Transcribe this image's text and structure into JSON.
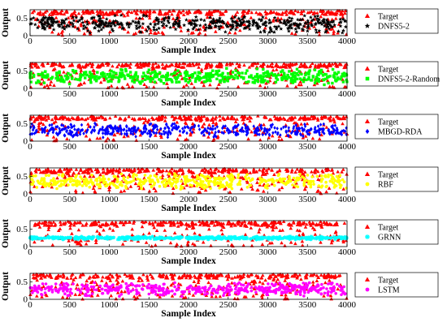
{
  "chart_data": [
    {
      "type": "scatter",
      "xlabel": "Sample Index",
      "ylabel": "Output",
      "xlim": [
        0,
        4000
      ],
      "ylim": [
        0,
        0.75
      ],
      "xticks": [
        "0",
        "500",
        "1000",
        "1500",
        "2000",
        "2500",
        "3000",
        "3500",
        "4000"
      ],
      "yticks": [
        "0",
        "0.5"
      ],
      "grid": false,
      "legend_position": "outside-right",
      "series": [
        {
          "name": "Target",
          "marker": "triangle",
          "color": "#ff0000",
          "typical_range": [
            0.0,
            0.72
          ]
        },
        {
          "name": "DNFS5-2",
          "marker": "star",
          "color": "#000000",
          "typical_range": [
            0.06,
            0.62
          ]
        }
      ]
    },
    {
      "type": "scatter",
      "xlabel": "Sample Index",
      "ylabel": "Output",
      "xlim": [
        0,
        4000
      ],
      "ylim": [
        0,
        0.75
      ],
      "xticks": [
        "0",
        "500",
        "1000",
        "1500",
        "2000",
        "2500",
        "3000",
        "3500",
        "4000"
      ],
      "yticks": [
        "0",
        "0.5"
      ],
      "grid": false,
      "legend_position": "outside-right",
      "series": [
        {
          "name": "Target",
          "marker": "triangle",
          "color": "#ff0000",
          "typical_range": [
            0.0,
            0.72
          ]
        },
        {
          "name": "DNFS5-2-Random",
          "marker": "square",
          "color": "#00ff00",
          "typical_range": [
            0.1,
            0.58
          ]
        }
      ]
    },
    {
      "type": "scatter",
      "xlabel": "Sample Index",
      "ylabel": "Output",
      "xlim": [
        0,
        4000
      ],
      "ylim": [
        0,
        0.75
      ],
      "xticks": [
        "0",
        "500",
        "1000",
        "1500",
        "2000",
        "2500",
        "3000",
        "3500",
        "4000"
      ],
      "yticks": [
        "0",
        "0.5"
      ],
      "grid": false,
      "legend_position": "outside-right",
      "series": [
        {
          "name": "Target",
          "marker": "triangle",
          "color": "#ff0000",
          "typical_range": [
            0.0,
            0.72
          ]
        },
        {
          "name": "MBGD-RDA",
          "marker": "diamond",
          "color": "#0000ff",
          "typical_range": [
            0.1,
            0.52
          ]
        }
      ]
    },
    {
      "type": "scatter",
      "xlabel": "Sample Index",
      "ylabel": "Output",
      "xlim": [
        0,
        4000
      ],
      "ylim": [
        0,
        0.75
      ],
      "xticks": [
        "0",
        "500",
        "1000",
        "1500",
        "2000",
        "2500",
        "3000",
        "3500",
        "4000"
      ],
      "yticks": [
        "0",
        "0.5"
      ],
      "grid": false,
      "legend_position": "outside-right",
      "series": [
        {
          "name": "Target",
          "marker": "triangle",
          "color": "#ff0000",
          "typical_range": [
            0.0,
            0.72
          ]
        },
        {
          "name": "RBF",
          "marker": "circle",
          "color": "#ffff00",
          "typical_range": [
            0.12,
            0.6
          ]
        }
      ]
    },
    {
      "type": "scatter",
      "xlabel": "Sample Index",
      "ylabel": "Output",
      "xlim": [
        0,
        4000
      ],
      "ylim": [
        0,
        0.75
      ],
      "xticks": [
        "0",
        "500",
        "1000",
        "1500",
        "2000",
        "2500",
        "3000",
        "3500",
        "4000"
      ],
      "yticks": [
        "0",
        "0.5"
      ],
      "grid": false,
      "legend_position": "outside-right",
      "series": [
        {
          "name": "Target",
          "marker": "triangle",
          "color": "#ff0000",
          "typical_range": [
            0.0,
            0.72
          ]
        },
        {
          "name": "GRNN",
          "marker": "asterisk",
          "color": "#00ffff",
          "typical_range": [
            0.2,
            0.3
          ]
        }
      ]
    },
    {
      "type": "scatter",
      "xlabel": "Sample Index",
      "ylabel": "Output",
      "xlim": [
        0,
        4000
      ],
      "ylim": [
        0,
        0.75
      ],
      "xticks": [
        "0",
        "500",
        "1000",
        "1500",
        "2000",
        "2500",
        "3000",
        "3500",
        "4000"
      ],
      "yticks": [
        "0",
        "0.5"
      ],
      "grid": false,
      "legend_position": "outside-right",
      "series": [
        {
          "name": "Target",
          "marker": "triangle",
          "color": "#ff0000",
          "typical_range": [
            0.0,
            0.72
          ]
        },
        {
          "name": "LSTM",
          "marker": "circle",
          "color": "#ff00ff",
          "typical_range": [
            0.08,
            0.5
          ]
        }
      ]
    }
  ]
}
